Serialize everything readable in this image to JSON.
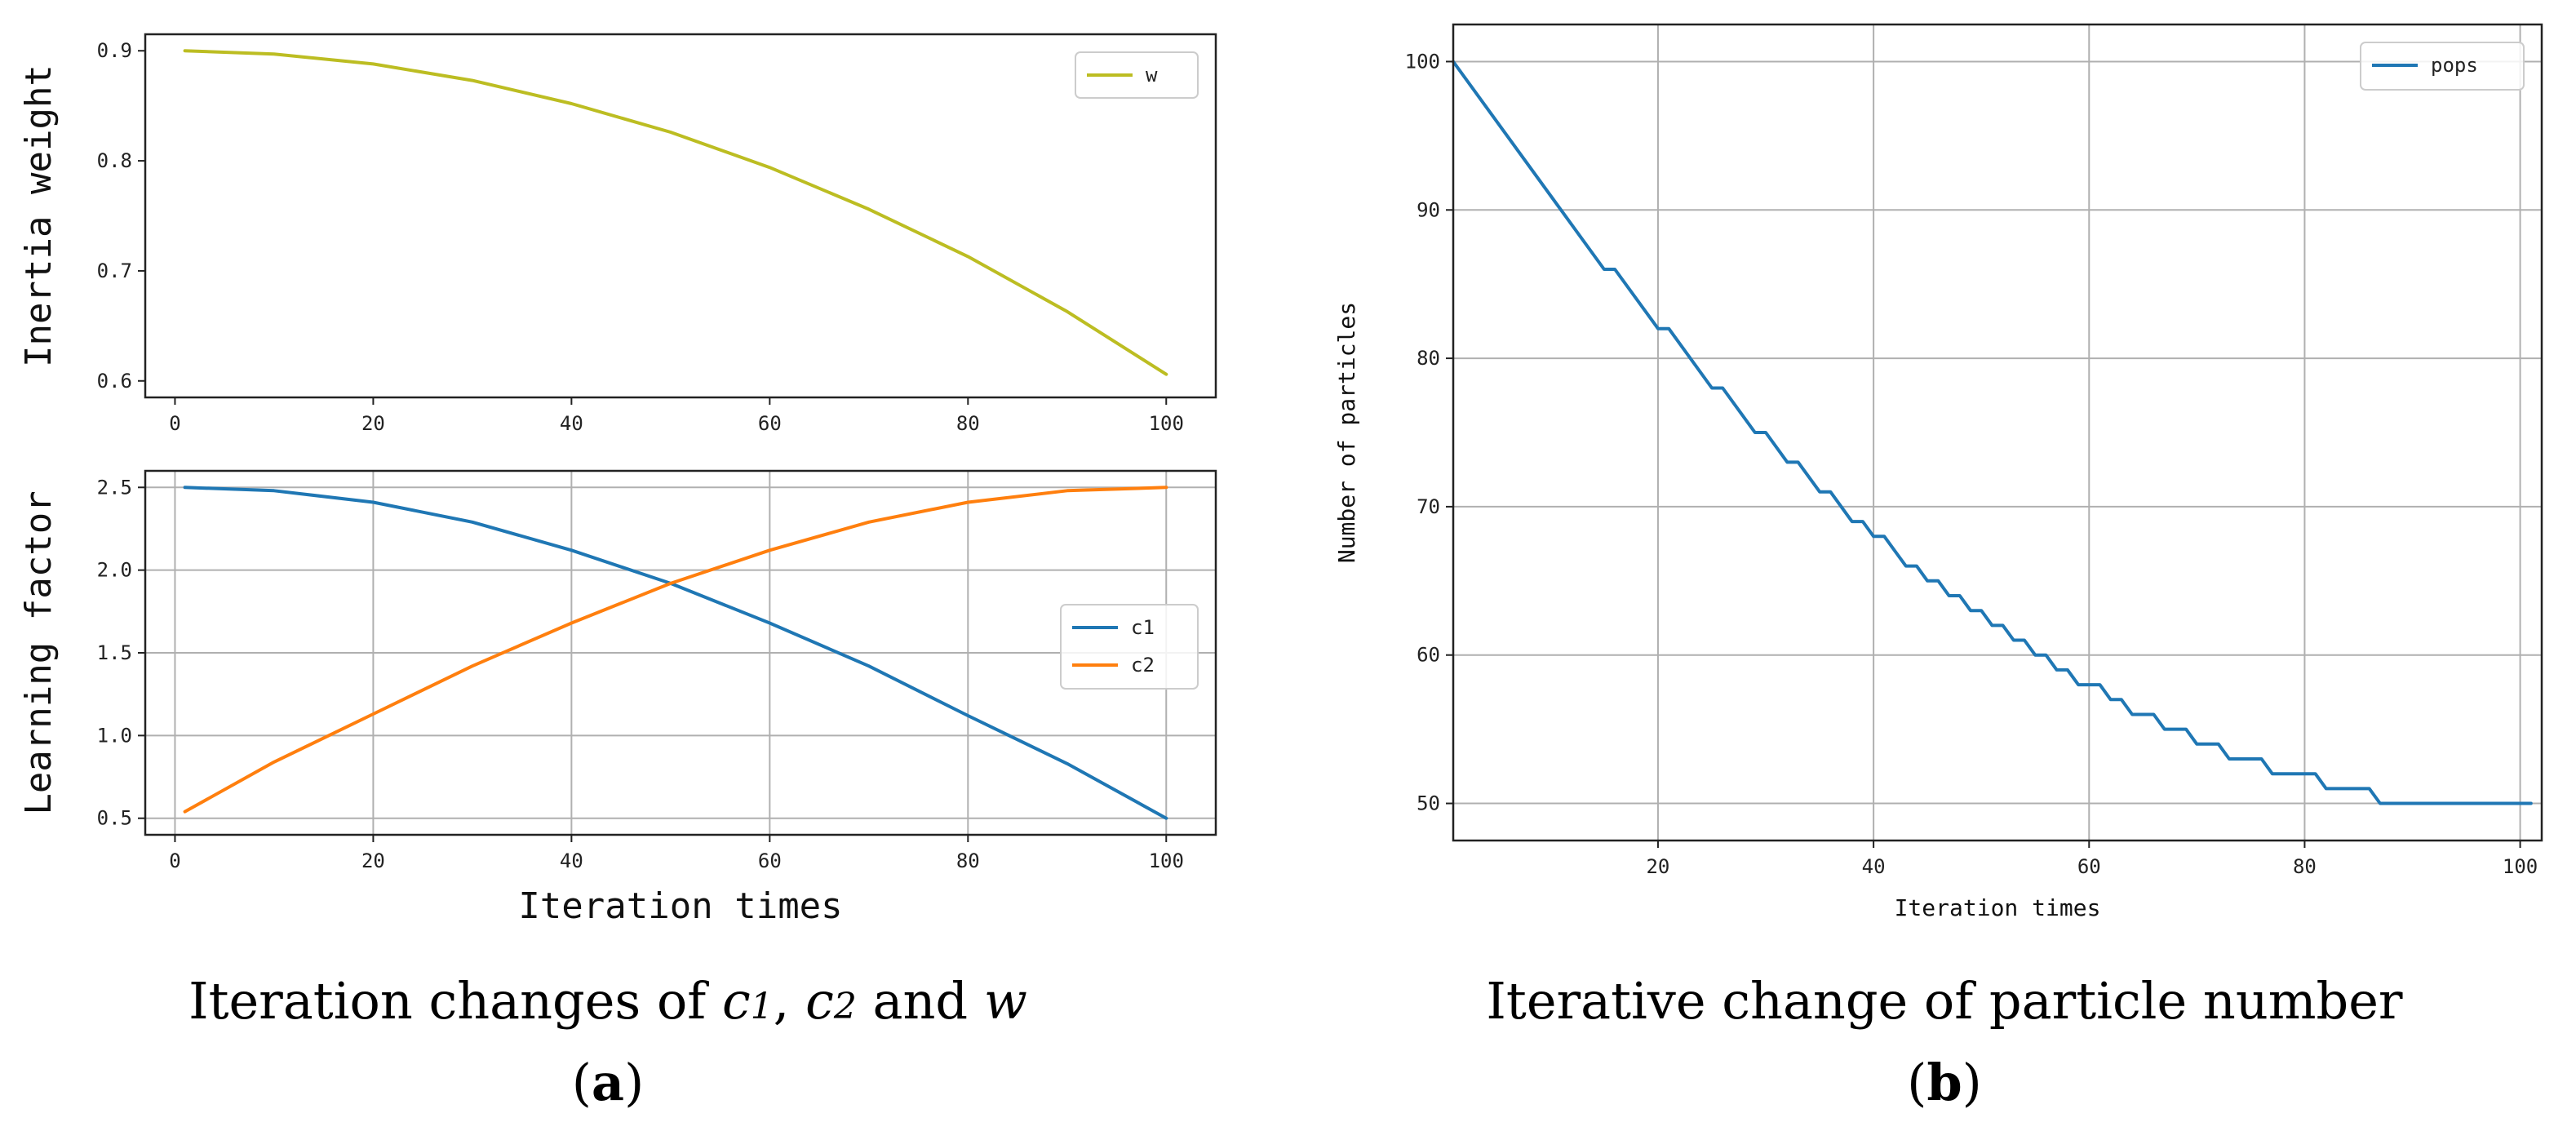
{
  "colors": {
    "w": "#bcbd22",
    "c1": "#1f77b4",
    "c2": "#ff7f0e",
    "pops": "#1f77b4",
    "grid": "#b0b0b0"
  },
  "captions": {
    "a_text1": "Iteration changes of ",
    "a_c": "c",
    "a_sub1": "1",
    "a_comma": ", ",
    "a_sub2": "2",
    "a_and": " and ",
    "a_w": "w",
    "a_label_open": "(",
    "a_label": "a",
    "a_label_close": ")",
    "b_text": "Iterative change of particle number",
    "b_label_open": "(",
    "b_label": "b",
    "b_label_close": ")"
  },
  "chart_data": [
    {
      "id": "inertia",
      "type": "line",
      "ylabel": "Inertia weight",
      "xlabel": "",
      "xlim": [
        -3,
        105
      ],
      "ylim": [
        0.585,
        0.915
      ],
      "xticks": [
        0,
        20,
        40,
        60,
        80,
        100
      ],
      "yticks": [
        0.6,
        0.7,
        0.8,
        0.9
      ],
      "ytick_labels": [
        "0.6",
        "0.7",
        "0.8",
        "0.9"
      ],
      "grid": false,
      "legend": "top-right",
      "series": [
        {
          "name": "w",
          "color": "#bcbd22",
          "x": [
            1,
            10,
            20,
            30,
            40,
            50,
            60,
            70,
            80,
            90,
            100
          ],
          "y": [
            0.9,
            0.897,
            0.888,
            0.873,
            0.852,
            0.826,
            0.794,
            0.756,
            0.713,
            0.663,
            0.606
          ]
        }
      ]
    },
    {
      "id": "learning",
      "type": "line",
      "ylabel": "Learning factor",
      "xlabel": "Iteration times",
      "xlim": [
        -3,
        105
      ],
      "ylim": [
        0.4,
        2.6
      ],
      "xticks": [
        0,
        20,
        40,
        60,
        80,
        100
      ],
      "yticks": [
        0.5,
        1.0,
        1.5,
        2.0,
        2.5
      ],
      "ytick_labels": [
        "0.5",
        "1.0",
        "1.5",
        "2.0",
        "2.5"
      ],
      "grid": true,
      "legend": "center-right",
      "series": [
        {
          "name": "c1",
          "color": "#1f77b4",
          "x": [
            1,
            10,
            20,
            30,
            40,
            50,
            60,
            70,
            80,
            90,
            100
          ],
          "y": [
            2.5,
            2.48,
            2.41,
            2.29,
            2.12,
            1.92,
            1.68,
            1.42,
            1.12,
            0.83,
            0.5
          ]
        },
        {
          "name": "c2",
          "color": "#ff7f0e",
          "x": [
            1,
            10,
            20,
            30,
            40,
            50,
            60,
            70,
            80,
            90,
            100
          ],
          "y": [
            0.54,
            0.84,
            1.13,
            1.42,
            1.68,
            1.92,
            2.12,
            2.29,
            2.41,
            2.48,
            2.5
          ]
        }
      ]
    },
    {
      "id": "pops",
      "type": "line",
      "step": true,
      "ylabel": "Number of particles",
      "xlabel": "Iteration times",
      "xlim": [
        1,
        102
      ],
      "ylim": [
        47.5,
        102.5
      ],
      "xticks": [
        20,
        40,
        60,
        80,
        100
      ],
      "yticks": [
        50,
        60,
        70,
        80,
        90,
        100
      ],
      "ytick_labels": [
        "50",
        "60",
        "70",
        "80",
        "90",
        "100"
      ],
      "grid": true,
      "legend": "top-right",
      "series": [
        {
          "name": "pops",
          "color": "#1f77b4",
          "x": [
            1,
            15,
            16,
            20,
            21,
            25,
            26,
            29,
            30,
            32,
            33,
            35,
            36,
            38,
            39,
            40,
            41,
            42,
            43,
            44,
            45,
            46,
            47,
            48,
            49,
            50,
            51,
            52,
            53,
            54,
            55,
            56,
            57,
            58,
            59,
            60,
            61,
            62,
            63,
            64,
            65,
            66,
            67,
            68,
            69,
            70,
            71,
            72,
            73,
            74,
            75,
            76,
            77,
            78,
            79,
            80,
            81,
            82,
            83,
            84,
            85,
            86,
            87,
            100,
            101
          ],
          "y": [
            100,
            86,
            86,
            82,
            82,
            78,
            78,
            75,
            75,
            73,
            73,
            71,
            71,
            69,
            69,
            68,
            68,
            67,
            66,
            66,
            65,
            65,
            64,
            64,
            63,
            63,
            62,
            62,
            61,
            61,
            60,
            60,
            59,
            59,
            58,
            58,
            58,
            57,
            57,
            56,
            56,
            56,
            55,
            55,
            55,
            54,
            54,
            54,
            53,
            53,
            53,
            53,
            52,
            52,
            52,
            52,
            52,
            51,
            51,
            51,
            51,
            51,
            50,
            50,
            50
          ]
        }
      ]
    }
  ]
}
